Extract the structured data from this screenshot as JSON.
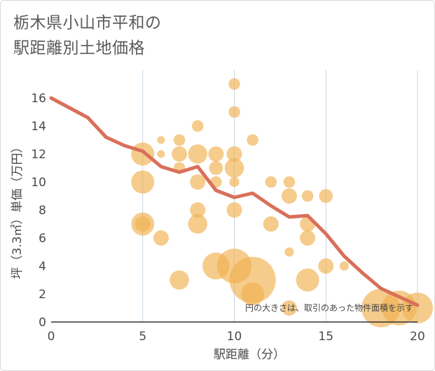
{
  "title_line1": "栃木県小山市平和の",
  "title_line2": "駅距離別土地価格",
  "chart_data": {
    "type": "scatter",
    "title": "栃木県小山市平和の駅距離別土地価格",
    "xlabel": "駅距離（分）",
    "ylabel": "坪（3.3㎡）単価（万円）",
    "xlim": [
      0,
      20
    ],
    "ylim": [
      0,
      18
    ],
    "xticks": [
      0,
      5,
      10,
      15,
      20
    ],
    "yticks": [
      0,
      2,
      4,
      6,
      8,
      10,
      12,
      14,
      16
    ],
    "grid": "vertical",
    "annotation": "円の大きさは、取引のあった物件面積を示す",
    "colors": {
      "points": "#f0b14e",
      "line": "#d9705a"
    },
    "points": [
      {
        "x": 5,
        "y": 12,
        "s": 3
      },
      {
        "x": 5,
        "y": 10,
        "s": 3
      },
      {
        "x": 5,
        "y": 7,
        "s": 3
      },
      {
        "x": 5,
        "y": 7,
        "s": 2
      },
      {
        "x": 6,
        "y": 13,
        "s": 1
      },
      {
        "x": 6,
        "y": 12,
        "s": 1
      },
      {
        "x": 6,
        "y": 6,
        "s": 2
      },
      {
        "x": 7,
        "y": 13,
        "s": 1.5
      },
      {
        "x": 7,
        "y": 12,
        "s": 2
      },
      {
        "x": 7,
        "y": 11,
        "s": 1.5
      },
      {
        "x": 7,
        "y": 3,
        "s": 2.5
      },
      {
        "x": 8,
        "y": 14,
        "s": 1.5
      },
      {
        "x": 8,
        "y": 12,
        "s": 2.5
      },
      {
        "x": 8,
        "y": 10,
        "s": 2
      },
      {
        "x": 8,
        "y": 8,
        "s": 2
      },
      {
        "x": 8,
        "y": 7,
        "s": 2.5
      },
      {
        "x": 9,
        "y": 12,
        "s": 2
      },
      {
        "x": 9,
        "y": 11,
        "s": 1.8
      },
      {
        "x": 9,
        "y": 10,
        "s": 1.5
      },
      {
        "x": 9,
        "y": 4,
        "s": 3.5
      },
      {
        "x": 10,
        "y": 17,
        "s": 1.5
      },
      {
        "x": 10,
        "y": 15,
        "s": 1.5
      },
      {
        "x": 10,
        "y": 12,
        "s": 2
      },
      {
        "x": 10,
        "y": 11,
        "s": 2.5
      },
      {
        "x": 10,
        "y": 10,
        "s": 1.3
      },
      {
        "x": 10,
        "y": 8,
        "s": 2
      },
      {
        "x": 10,
        "y": 4,
        "s": 4.5
      },
      {
        "x": 11,
        "y": 13,
        "s": 1.5
      },
      {
        "x": 11,
        "y": 3,
        "s": 6
      },
      {
        "x": 11,
        "y": 2,
        "s": 3
      },
      {
        "x": 12,
        "y": 10,
        "s": 1.5
      },
      {
        "x": 12,
        "y": 7,
        "s": 2
      },
      {
        "x": 13,
        "y": 10,
        "s": 1.5
      },
      {
        "x": 13,
        "y": 9,
        "s": 2
      },
      {
        "x": 13,
        "y": 5,
        "s": 1.2
      },
      {
        "x": 13,
        "y": 1,
        "s": 2
      },
      {
        "x": 14,
        "y": 9,
        "s": 1.5
      },
      {
        "x": 14,
        "y": 7,
        "s": 2
      },
      {
        "x": 14,
        "y": 6,
        "s": 2
      },
      {
        "x": 14,
        "y": 3,
        "s": 3
      },
      {
        "x": 15,
        "y": 9,
        "s": 1.8
      },
      {
        "x": 15,
        "y": 4,
        "s": 2
      },
      {
        "x": 16,
        "y": 4,
        "s": 1.2
      },
      {
        "x": 18,
        "y": 1,
        "s": 5
      },
      {
        "x": 19,
        "y": 1,
        "s": 4.5
      },
      {
        "x": 20,
        "y": 1,
        "s": 4
      }
    ],
    "line": {
      "x": [
        0,
        1,
        2,
        3,
        4,
        5,
        6,
        7,
        8,
        9,
        10,
        11,
        12,
        13,
        14,
        15,
        16,
        17,
        18,
        19,
        20
      ],
      "y": [
        16,
        15.3,
        14.6,
        13.2,
        12.6,
        12.2,
        11.1,
        10.7,
        11.1,
        9.4,
        8.9,
        9.2,
        8.3,
        7.5,
        7.6,
        6.3,
        4.7,
        3.5,
        2.4,
        1.8,
        1.2
      ]
    }
  }
}
